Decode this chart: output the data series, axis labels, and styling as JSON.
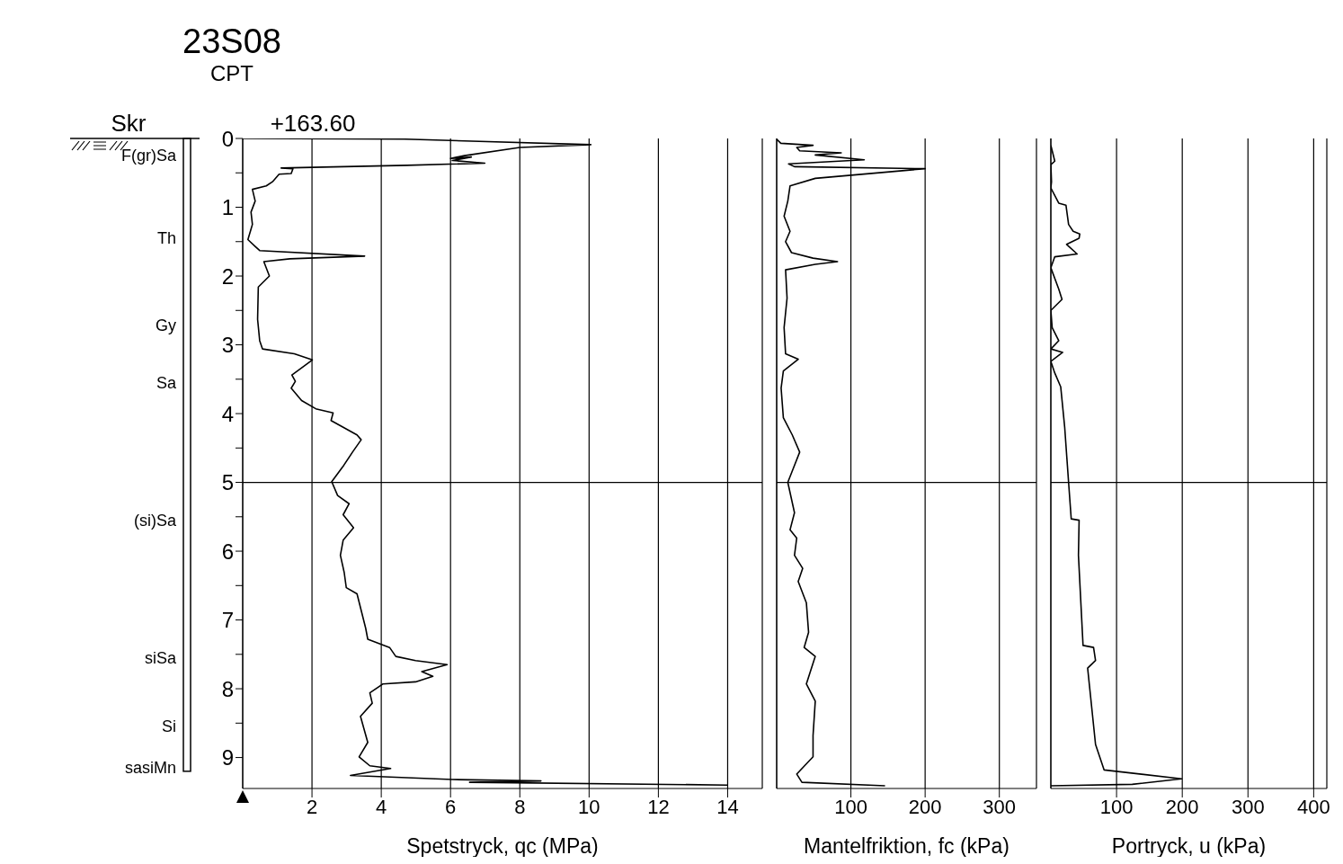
{
  "chart_data": [
    {
      "type": "line",
      "title": "23S08",
      "subtitle": "CPT",
      "xlabel": "Spetstryck, qc (MPa)",
      "annotations": [
        "Skr",
        "+163.60",
        "F(gr)Sa",
        "Th",
        "Gy",
        "Sa",
        "(si)Sa",
        "siSa",
        "Si",
        "sasiMn"
      ],
      "series": [
        {
          "color": "#000000",
          "x": [
            0,
            4.67,
            10.05,
            8.0,
            6.4,
            6.0,
            6.6,
            6.05,
            6.99,
            4.74,
            1.11,
            1.45,
            1.4,
            1.05,
            0.86,
            0.68,
            0.28,
            0.36,
            0.24,
            0.28,
            0.15,
            0.36,
            0.49,
            3.52,
            1.36,
            0.61,
            0.77,
            0.45,
            0.43,
            0.49,
            0.57,
            1.49,
            2.01,
            1.42,
            1.52,
            1.4,
            1.7,
            2.11,
            2.61,
            2.55,
            3.3,
            3.42,
            3.17,
            2.92,
            2.57,
            2.74,
            3.07,
            2.9,
            3.2,
            2.9,
            2.82,
            2.93,
            2.99,
            3.3,
            3.55,
            3.61,
            4.24,
            4.42,
            4.99,
            5.9,
            5.17,
            5.49,
            4.99,
            4.05,
            3.67,
            3.74,
            3.4,
            3.61,
            3.36,
            3.67,
            4.27,
            3.11,
            6.05,
            8.61,
            6.55,
            13.99
          ],
          "values": [
            0,
            0.01,
            0.09,
            0.13,
            0.25,
            0.29,
            0.27,
            0.32,
            0.36,
            0.39,
            0.43,
            0.44,
            0.51,
            0.52,
            0.63,
            0.69,
            0.74,
            0.91,
            1.07,
            1.25,
            1.47,
            1.57,
            1.63,
            1.71,
            1.75,
            1.79,
            2.0,
            2.16,
            2.63,
            2.94,
            3.06,
            3.13,
            3.22,
            3.44,
            3.53,
            3.63,
            3.81,
            3.93,
            3.99,
            4.1,
            4.31,
            4.38,
            4.56,
            4.75,
            4.99,
            5.19,
            5.31,
            5.47,
            5.66,
            5.84,
            6.06,
            6.31,
            6.53,
            6.62,
            7.12,
            7.28,
            7.4,
            7.53,
            7.59,
            7.65,
            7.75,
            7.82,
            7.9,
            7.93,
            8.06,
            8.21,
            8.4,
            8.78,
            8.99,
            9.12,
            9.16,
            9.26,
            9.32,
            9.34,
            9.36,
            9.4
          ]
        }
      ],
      "xlim": [
        0,
        15
      ],
      "xticks": [
        2,
        4,
        6,
        8,
        10,
        12,
        14
      ],
      "ylim": [
        9.45,
        0
      ],
      "yticks": [
        0,
        {
          "value": 0.5,
          "label": null
        },
        1,
        {
          "value": 1.5,
          "label": null
        },
        2,
        {
          "value": 2.5,
          "label": null
        },
        3,
        {
          "value": 3.5,
          "label": null
        },
        4,
        {
          "value": 4.5,
          "label": null
        },
        5,
        {
          "value": 5.5,
          "label": null
        },
        6,
        {
          "value": 6.5,
          "label": null
        },
        7,
        {
          "value": 7.5,
          "label": null
        },
        8,
        {
          "value": 8.5,
          "label": null
        },
        9
      ],
      "grid": "x",
      "ref_lines": [
        {
          "axis": "y",
          "value": 5
        }
      ]
    },
    {
      "type": "line",
      "xlabel": "Mantelfriktion, fc (kPa)",
      "series": [
        {
          "color": "#000000",
          "x": [
            0,
            5.6,
            49,
            27,
            31,
            87,
            52,
            118,
            16,
            24,
            200,
            52,
            18,
            15,
            10,
            18,
            12,
            20,
            49,
            82,
            52,
            12,
            14,
            10,
            12,
            29,
            9,
            6,
            9,
            21,
            31,
            15,
            24,
            18,
            27,
            24,
            35,
            29,
            40,
            43,
            37,
            52,
            40,
            52,
            49,
            49,
            27,
            34,
            146
          ],
          "values": [
            0.01,
            0.07,
            0.1,
            0.13,
            0.18,
            0.21,
            0.24,
            0.31,
            0.37,
            0.41,
            0.44,
            0.58,
            0.69,
            0.91,
            1.13,
            1.35,
            1.5,
            1.66,
            1.74,
            1.79,
            1.83,
            1.91,
            2.32,
            2.75,
            3.13,
            3.21,
            3.38,
            3.63,
            4.06,
            4.31,
            4.56,
            5.0,
            5.44,
            5.69,
            5.81,
            6.06,
            6.25,
            6.44,
            6.75,
            7.18,
            7.4,
            7.53,
            7.93,
            8.18,
            8.68,
            8.99,
            9.24,
            9.36,
            9.41
          ]
        }
      ],
      "xlim": [
        0,
        350
      ],
      "xticks": [
        100,
        200,
        300
      ],
      "ylim": [
        9.45,
        0
      ],
      "tick_labels": "x",
      "grid": "x",
      "ref_lines": [
        {
          "axis": "y",
          "value": 5
        }
      ]
    },
    {
      "type": "line",
      "xlabel": "Portryck, u (kPa)",
      "series": [
        {
          "color": "#000000",
          "x": [
            0,
            6,
            0,
            1,
            0,
            12,
            23,
            27,
            34,
            44,
            43,
            24,
            40,
            6,
            0,
            12,
            17,
            0,
            2,
            12,
            0,
            18,
            0,
            6,
            15,
            21,
            27,
            31,
            43,
            42,
            49,
            65,
            68,
            56,
            68,
            81,
            199,
            124,
            0
          ],
          "values": [
            0.1,
            0.33,
            0.38,
            0.63,
            0.72,
            0.94,
            0.97,
            1.25,
            1.35,
            1.39,
            1.45,
            1.54,
            1.68,
            1.72,
            1.88,
            2.19,
            2.34,
            2.5,
            2.75,
            2.94,
            3.06,
            3.11,
            3.24,
            3.41,
            3.61,
            4.19,
            5.0,
            5.53,
            5.55,
            6.06,
            7.37,
            7.4,
            7.59,
            7.7,
            8.81,
            9.18,
            9.31,
            9.39,
            9.41
          ]
        }
      ],
      "xlim": [
        0,
        420
      ],
      "xticks": [
        100,
        200,
        300,
        400
      ],
      "ylim": [
        9.45,
        0
      ],
      "tick_labels": "x",
      "grid": "x",
      "ref_lines": [
        {
          "axis": "y",
          "value": 5
        }
      ]
    }
  ]
}
